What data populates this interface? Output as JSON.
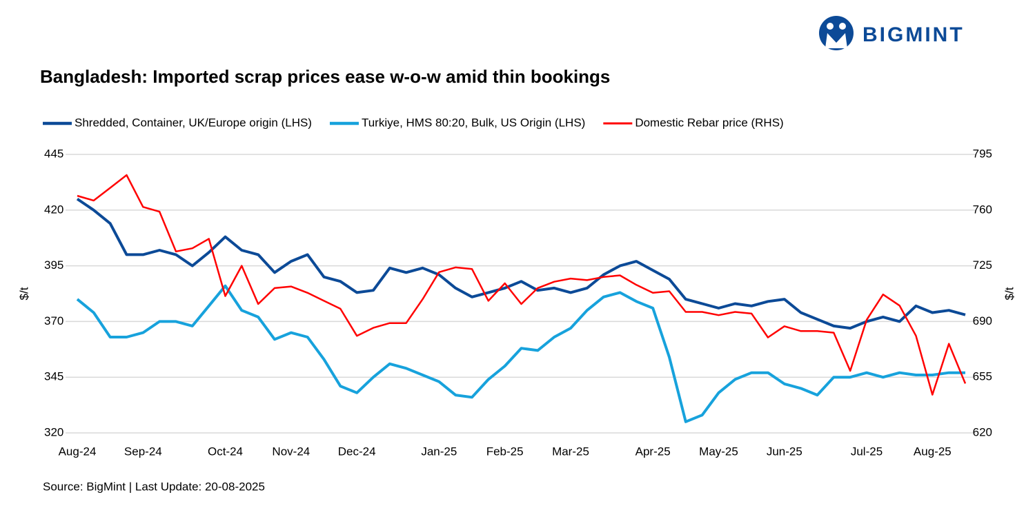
{
  "chart_data": {
    "type": "line",
    "logo": "BIGMINT",
    "title": "Bangladesh: Imported scrap prices ease w-o-w amid thin bookings",
    "source": "Source: BigMint | Last Update: 20-08-2025",
    "y_label": "$/t",
    "y2_label": "$/t",
    "categories": [
      "Aug-24",
      null,
      null,
      null,
      "Sep-24",
      null,
      null,
      null,
      null,
      "Oct-24",
      null,
      null,
      null,
      "Nov-24",
      null,
      null,
      null,
      "Dec-24",
      null,
      null,
      null,
      null,
      "Jan-25",
      null,
      null,
      null,
      "Feb-25",
      null,
      null,
      null,
      "Mar-25",
      null,
      null,
      null,
      null,
      "Apr-25",
      null,
      null,
      null,
      "May-25",
      null,
      null,
      null,
      "Jun-25",
      null,
      null,
      null,
      null,
      "Jul-25",
      null,
      null,
      null,
      "Aug-25",
      null,
      null
    ],
    "ylim": [
      320,
      445
    ],
    "yticks": [
      320,
      345,
      370,
      395,
      420,
      445
    ],
    "y2lim": [
      620,
      795
    ],
    "y2ticks": [
      620,
      655,
      690,
      725,
      760,
      795
    ],
    "grid": true,
    "series": [
      {
        "name": "Shredded, Container, UK/Europe origin (LHS)",
        "color": "#0c4a97",
        "width": 4,
        "values": [
          425,
          420,
          414,
          400,
          400,
          402,
          400,
          395,
          401,
          408,
          402,
          400,
          392,
          397,
          400,
          390,
          388,
          383,
          384,
          394,
          392,
          394,
          391,
          385,
          381,
          383,
          385,
          388,
          384,
          385,
          383,
          385,
          391,
          395,
          397,
          393,
          389,
          380,
          378,
          376,
          378,
          377,
          379,
          380,
          374,
          371,
          368,
          367,
          370,
          372,
          370,
          377,
          374,
          375,
          373
        ]
      },
      {
        "name": "Turkiye, HMS 80:20, Bulk, US Origin (LHS)",
        "color": "#17a2dc",
        "width": 4,
        "values": [
          380,
          374,
          363,
          363,
          365,
          370,
          370,
          368,
          377,
          386,
          375,
          372,
          362,
          365,
          363,
          353,
          341,
          338,
          345,
          351,
          349,
          346,
          343,
          337,
          336,
          344,
          350,
          358,
          357,
          363,
          367,
          375,
          381,
          383,
          379,
          376,
          354,
          325,
          328,
          338,
          344,
          347,
          347,
          342,
          340,
          337,
          345,
          345,
          347,
          345,
          347,
          346,
          346,
          347,
          347
        ]
      },
      {
        "name": "Domestic Rebar price (RHS)",
        "color": "#ff0000",
        "width": 2.5,
        "axis": "y2",
        "values": [
          769,
          766,
          774,
          782,
          762,
          759,
          734,
          736,
          742,
          706,
          725,
          701,
          711,
          712,
          708,
          703,
          698,
          681,
          686,
          689,
          689,
          704,
          721,
          724,
          723,
          703,
          714,
          701,
          711,
          715,
          717,
          716,
          718,
          719,
          713,
          708,
          709,
          696,
          696,
          694,
          696,
          695,
          680,
          687,
          684,
          684,
          683,
          659,
          691,
          707,
          700,
          681,
          644,
          676,
          651
        ]
      }
    ]
  }
}
